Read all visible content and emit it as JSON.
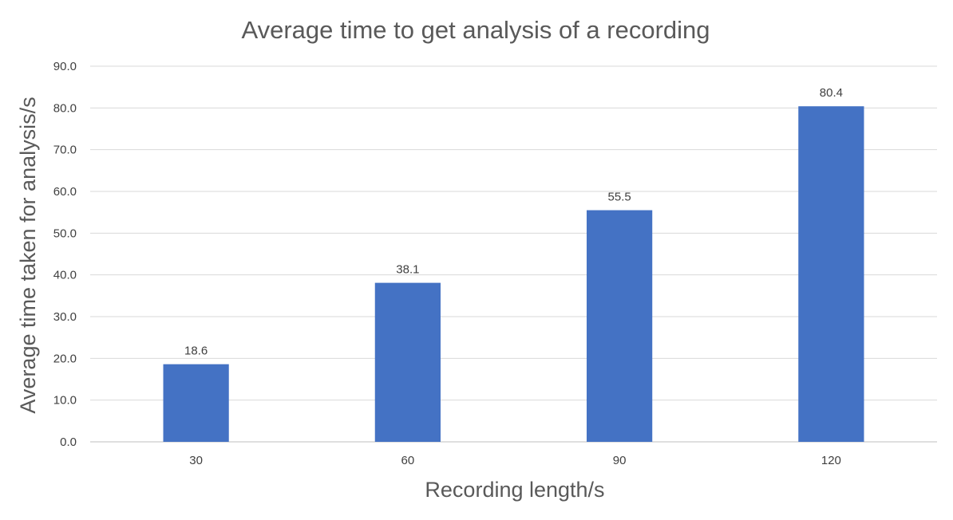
{
  "chart_data": {
    "type": "bar",
    "title": "Average time to get analysis of a recording",
    "xlabel": "Recording length/s",
    "ylabel": "Average time taken for analysis/s",
    "categories": [
      "30",
      "60",
      "90",
      "120"
    ],
    "values": [
      18.6,
      38.1,
      55.5,
      80.4
    ],
    "data_labels": [
      "18.6",
      "38.1",
      "55.5",
      "80.4"
    ],
    "ylim": [
      0,
      90
    ],
    "yticks": [
      "0.0",
      "10.0",
      "20.0",
      "30.0",
      "40.0",
      "50.0",
      "60.0",
      "70.0",
      "80.0",
      "90.0"
    ],
    "grid": true,
    "legend": "none",
    "bar_color": "#4472c4"
  }
}
